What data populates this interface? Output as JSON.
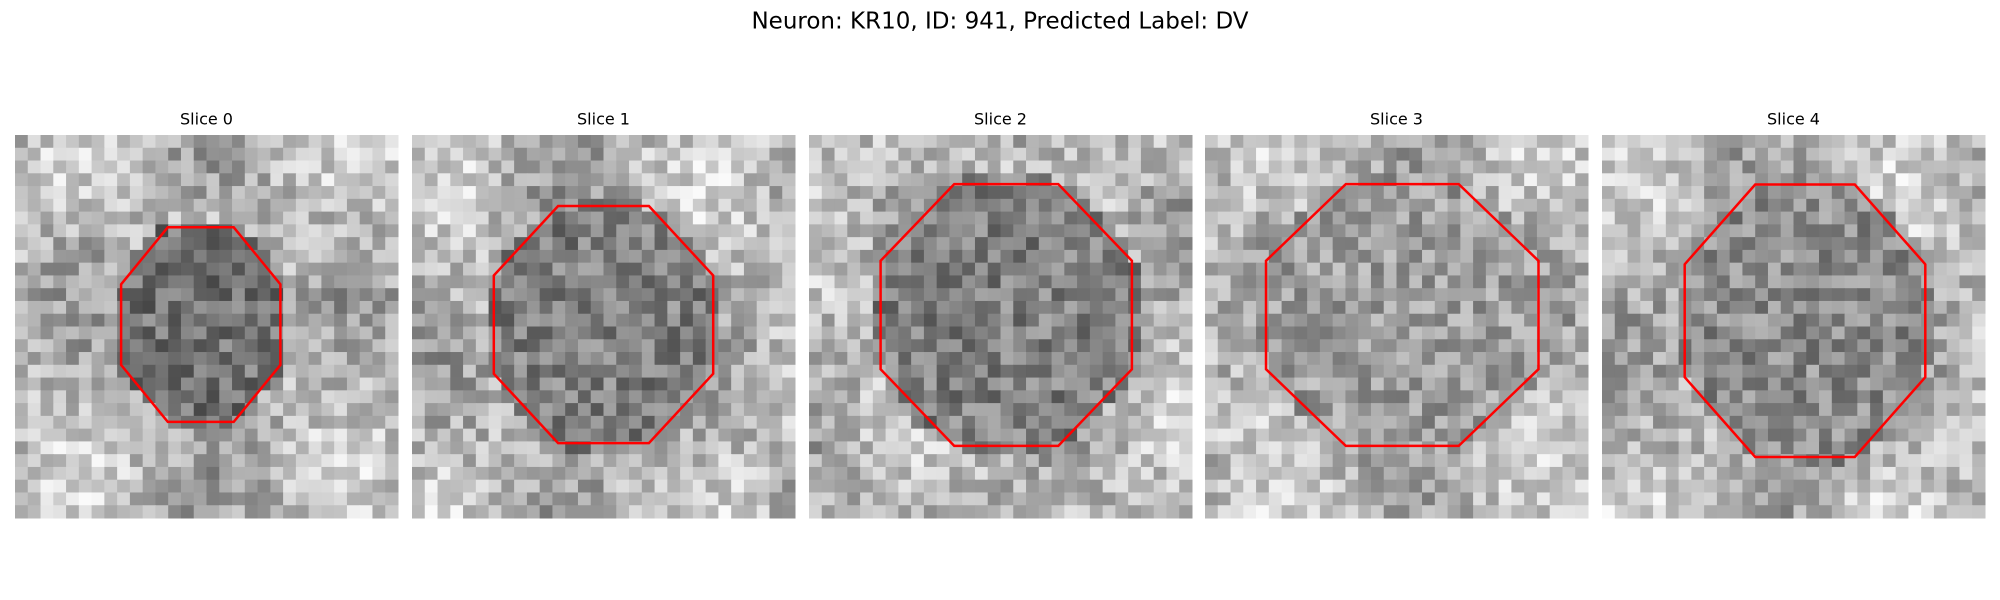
{
  "title": "Neuron: KR10, ID: 941, Predicted Label: DV",
  "panels": [
    {
      "title": "Slice 0"
    },
    {
      "title": "Slice 1"
    },
    {
      "title": "Slice 2"
    },
    {
      "title": "Slice 3"
    },
    {
      "title": "Slice 4"
    }
  ]
}
